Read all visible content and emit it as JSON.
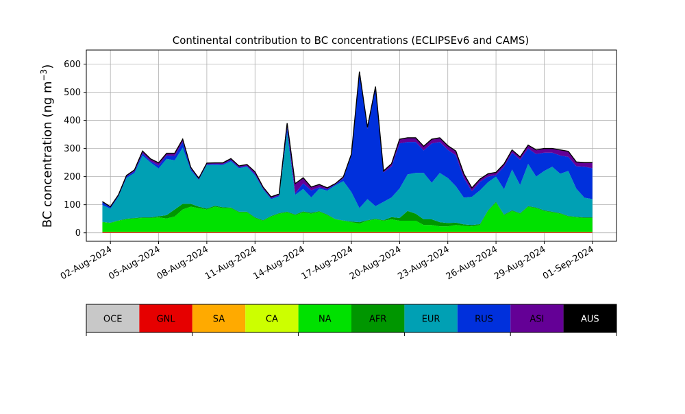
{
  "chart_data": {
    "type": "area",
    "stacked": true,
    "title": "Continental contribution to BC concentrations (ECLIPSEv6 and CAMS)",
    "ylabel": "BC concentration (ng m",
    "ylabel_sup": "−3",
    "ylabel_close": ")",
    "xlabel": "",
    "x_start": "2024-08-01 12:00",
    "x_end": "2024-09-01 00:00",
    "xlim": [
      "2024-07-31 12:00",
      "2024-09-02 12:00"
    ],
    "ylim": [
      -30,
      650
    ],
    "grid": true,
    "y_ticks": [
      0,
      100,
      200,
      300,
      400,
      500,
      600
    ],
    "x_ticks": [
      {
        "date": "2024-08-02",
        "label": "02-Aug-2024"
      },
      {
        "date": "2024-08-05",
        "label": "05-Aug-2024"
      },
      {
        "date": "2024-08-08",
        "label": "08-Aug-2024"
      },
      {
        "date": "2024-08-11",
        "label": "11-Aug-2024"
      },
      {
        "date": "2024-08-14",
        "label": "14-Aug-2024"
      },
      {
        "date": "2024-08-17",
        "label": "17-Aug-2024"
      },
      {
        "date": "2024-08-20",
        "label": "20-Aug-2024"
      },
      {
        "date": "2024-08-23",
        "label": "23-Aug-2024"
      },
      {
        "date": "2024-08-26",
        "label": "26-Aug-2024"
      },
      {
        "date": "2024-08-29",
        "label": "29-Aug-2024"
      },
      {
        "date": "2024-09-01",
        "label": "01-Sep-2024"
      }
    ],
    "x_dates": [
      "2024-08-01",
      "2024-08-02",
      "2024-08-03",
      "2024-08-04",
      "2024-08-05",
      "2024-08-06",
      "2024-08-07",
      "2024-08-08",
      "2024-08-09",
      "2024-08-10",
      "2024-08-11",
      "2024-08-12",
      "2024-08-13",
      "2024-08-14",
      "2024-08-15",
      "2024-08-16",
      "2024-08-17",
      "2024-08-18",
      "2024-08-19",
      "2024-08-20",
      "2024-08-21",
      "2024-08-22",
      "2024-08-23",
      "2024-08-24",
      "2024-08-25",
      "2024-08-26",
      "2024-08-27",
      "2024-08-28",
      "2024-08-29",
      "2024-08-30",
      "2024-08-31",
      "2024-09-01"
    ],
    "x": [
      "2024-08-01 12:00",
      "2024-08-02 00:00",
      "2024-08-02 12:00",
      "2024-08-03 00:00",
      "2024-08-03 12:00",
      "2024-08-04 00:00",
      "2024-08-04 12:00",
      "2024-08-05 00:00",
      "2024-08-05 12:00",
      "2024-08-06 00:00",
      "2024-08-06 12:00",
      "2024-08-07 00:00",
      "2024-08-07 12:00",
      "2024-08-08 00:00",
      "2024-08-08 12:00",
      "2024-08-09 00:00",
      "2024-08-09 12:00",
      "2024-08-10 00:00",
      "2024-08-10 12:00",
      "2024-08-11 00:00",
      "2024-08-11 12:00",
      "2024-08-12 00:00",
      "2024-08-12 12:00",
      "2024-08-13 00:00",
      "2024-08-13 12:00",
      "2024-08-14 00:00",
      "2024-08-14 12:00",
      "2024-08-15 00:00",
      "2024-08-15 12:00",
      "2024-08-16 00:00",
      "2024-08-16 12:00",
      "2024-08-17 00:00",
      "2024-08-17 12:00",
      "2024-08-18 00:00",
      "2024-08-18 12:00",
      "2024-08-19 00:00",
      "2024-08-19 12:00",
      "2024-08-20 00:00",
      "2024-08-20 12:00",
      "2024-08-21 00:00",
      "2024-08-21 12:00",
      "2024-08-22 00:00",
      "2024-08-22 12:00",
      "2024-08-23 00:00",
      "2024-08-23 12:00",
      "2024-08-24 00:00",
      "2024-08-24 12:00",
      "2024-08-25 00:00",
      "2024-08-25 12:00",
      "2024-08-26 00:00",
      "2024-08-26 12:00",
      "2024-08-27 00:00",
      "2024-08-27 12:00",
      "2024-08-28 00:00",
      "2024-08-28 12:00",
      "2024-08-29 00:00",
      "2024-08-29 12:00",
      "2024-08-30 00:00",
      "2024-08-30 12:00",
      "2024-08-31 00:00",
      "2024-08-31 12:00",
      "2024-09-01 00:00"
    ],
    "series": [
      {
        "name": "OCE",
        "color": "#c8c8c8",
        "values": [
          0,
          0,
          0,
          0,
          0,
          0,
          0,
          0,
          0,
          0,
          0,
          0,
          0,
          0,
          0,
          0,
          0,
          0,
          0,
          0,
          0,
          0,
          0,
          0,
          0,
          0,
          0,
          0,
          0,
          0,
          0,
          0,
          0,
          0,
          0,
          0,
          0,
          0,
          0,
          0,
          0,
          0,
          0,
          0,
          0,
          0,
          0,
          0,
          0,
          0,
          0,
          0,
          0,
          0,
          0,
          0,
          0,
          0,
          0,
          0,
          0,
          0
        ]
      },
      {
        "name": "GNL",
        "color": "#e60000",
        "values": [
          2,
          2,
          2,
          2,
          2,
          2,
          2,
          2,
          2,
          2,
          2,
          2,
          2,
          2,
          2,
          2,
          2,
          2,
          2,
          2,
          2,
          2,
          2,
          2,
          2,
          2,
          2,
          2,
          2,
          2,
          2,
          2,
          2,
          2,
          2,
          2,
          2,
          2,
          2,
          2,
          2,
          2,
          2,
          2,
          2,
          2,
          2,
          2,
          2,
          2,
          2,
          2,
          2,
          2,
          2,
          2,
          2,
          2,
          2,
          2,
          2,
          2
        ]
      },
      {
        "name": "SA",
        "color": "#ffaa00",
        "values": [
          1,
          1,
          1,
          1,
          1,
          1,
          1,
          1,
          1,
          1,
          1,
          1,
          1,
          1,
          1,
          1,
          1,
          1,
          1,
          1,
          1,
          1,
          1,
          1,
          1,
          1,
          1,
          1,
          1,
          1,
          1,
          1,
          1,
          1,
          1,
          1,
          1,
          1,
          1,
          1,
          1,
          1,
          1,
          1,
          1,
          1,
          1,
          1,
          1,
          1,
          1,
          1,
          1,
          1,
          1,
          1,
          1,
          1,
          1,
          1,
          1,
          1
        ]
      },
      {
        "name": "CA",
        "color": "#ccff00",
        "values": [
          0,
          0,
          0,
          0,
          0,
          0,
          0,
          0,
          0,
          0,
          0,
          0,
          0,
          0,
          0,
          0,
          0,
          0,
          0,
          0,
          0,
          0,
          0,
          0,
          0,
          0,
          0,
          0,
          0,
          0,
          0,
          0,
          0,
          0,
          0,
          0,
          0,
          0,
          0,
          0,
          0,
          0,
          0,
          0,
          0,
          0,
          0,
          0,
          0,
          0,
          0,
          0,
          0,
          0,
          0,
          0,
          0,
          0,
          0,
          0,
          0,
          0
        ]
      },
      {
        "name": "NA",
        "color": "#00e100",
        "values": [
          35,
          32,
          40,
          45,
          48,
          50,
          50,
          52,
          48,
          55,
          80,
          90,
          85,
          80,
          90,
          85,
          85,
          70,
          70,
          50,
          40,
          55,
          65,
          70,
          60,
          70,
          65,
          72,
          60,
          45,
          40,
          35,
          30,
          40,
          45,
          40,
          45,
          40,
          40,
          40,
          25,
          25,
          20,
          20,
          25,
          22,
          20,
          25,
          75,
          105,
          60,
          75,
          65,
          90,
          85,
          75,
          70,
          65,
          55,
          52,
          50,
          50
        ]
      },
      {
        "name": "AFR",
        "color": "#009600",
        "values": [
          1,
          1,
          1,
          2,
          2,
          2,
          2,
          4,
          12,
          25,
          20,
          10,
          5,
          3,
          3,
          3,
          2,
          2,
          2,
          2,
          2,
          2,
          2,
          2,
          2,
          3,
          3,
          2,
          2,
          1,
          1,
          2,
          5,
          2,
          2,
          2,
          8,
          10,
          35,
          25,
          20,
          20,
          15,
          12,
          8,
          5,
          5,
          3,
          2,
          2,
          2,
          2,
          2,
          2,
          2,
          2,
          2,
          2,
          2,
          2,
          2,
          2
        ]
      },
      {
        "name": "EUR",
        "color": "#00a0b4",
        "values": [
          60,
          50,
          85,
          145,
          160,
          220,
          195,
          170,
          200,
          175,
          200,
          120,
          95,
          155,
          145,
          150,
          165,
          155,
          160,
          150,
          110,
          60,
          60,
          280,
          70,
          80,
          55,
          80,
          85,
          120,
          140,
          105,
          50,
          75,
          45,
          65,
          70,
          105,
          130,
          145,
          165,
          130,
          175,
          160,
          130,
          95,
          100,
          120,
          100,
          90,
          90,
          145,
          100,
          150,
          110,
          140,
          160,
          140,
          160,
          100,
          70,
          65
        ]
      },
      {
        "name": "RUS",
        "color": "#0030dc",
        "values": [
          10,
          5,
          3,
          5,
          6,
          8,
          5,
          10,
          12,
          15,
          20,
          5,
          3,
          3,
          4,
          3,
          4,
          3,
          3,
          4,
          3,
          3,
          3,
          20,
          5,
          20,
          25,
          5,
          5,
          3,
          10,
          130,
          480,
          250,
          420,
          105,
          110,
          160,
          115,
          110,
          80,
          140,
          110,
          100,
          110,
          70,
          20,
          30,
          20,
          5,
          80,
          60,
          90,
          55,
          80,
          65,
          50,
          65,
          50,
          80,
          110,
          110
        ]
      },
      {
        "name": "ASI",
        "color": "#640096",
        "values": [
          2,
          2,
          3,
          4,
          5,
          8,
          8,
          10,
          8,
          10,
          10,
          5,
          3,
          4,
          4,
          5,
          5,
          5,
          5,
          8,
          5,
          5,
          5,
          15,
          35,
          20,
          12,
          10,
          5,
          3,
          5,
          5,
          5,
          5,
          5,
          5,
          10,
          15,
          15,
          15,
          15,
          15,
          15,
          15,
          15,
          15,
          12,
          10,
          10,
          10,
          10,
          10,
          10,
          12,
          15,
          15,
          15,
          20,
          20,
          15,
          15,
          20
        ]
      },
      {
        "name": "AUS",
        "color": "#000000",
        "values": [
          0,
          0,
          0,
          0,
          0,
          0,
          0,
          0,
          0,
          0,
          0,
          0,
          0,
          0,
          0,
          0,
          0,
          0,
          0,
          0,
          0,
          0,
          0,
          0,
          0,
          0,
          0,
          0,
          0,
          0,
          0,
          0,
          0,
          0,
          0,
          0,
          0,
          0,
          0,
          0,
          0,
          0,
          0,
          0,
          0,
          0,
          0,
          0,
          0,
          0,
          0,
          0,
          0,
          0,
          0,
          0,
          0,
          0,
          0,
          0,
          0,
          0
        ]
      }
    ],
    "total_line_color": "#000000"
  }
}
